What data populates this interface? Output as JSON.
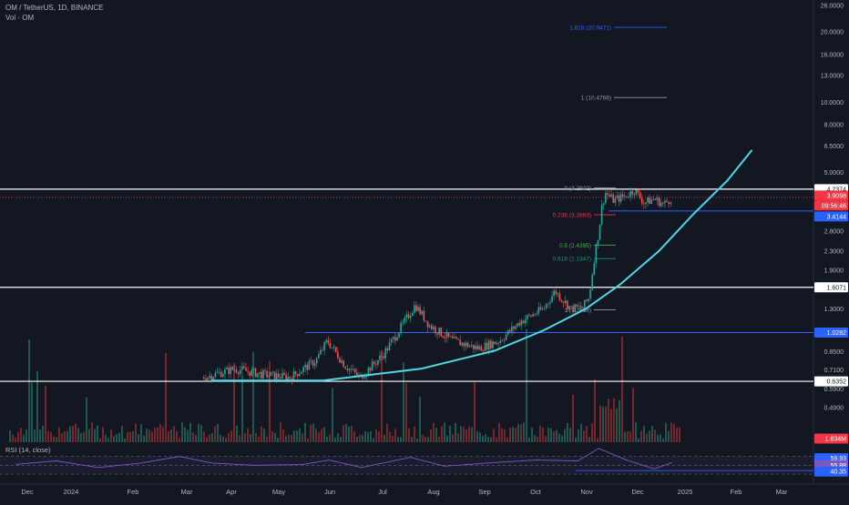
{
  "header": {
    "symbol_line": "OM / TetherUS, 1D, BINANCE",
    "volume_label": "Vol · OM"
  },
  "rsi_label": "RSI (14, close)",
  "colors": {
    "background": "#131722",
    "up": "#26a69a",
    "down": "#ef5350",
    "curve": "#4dd9e6",
    "blue_line": "#2962ff",
    "rsi": "#7e57c2",
    "red_dotted": "#f23645"
  },
  "price_axis": [
    "26.0000",
    "20.0000",
    "16.0000",
    "13.0000",
    "10.0000",
    "8.0000",
    "6.5000",
    "5.0000",
    "4.2374",
    "3.9098",
    "3.4144",
    "2.8000",
    "2.3000",
    "1.9000",
    "1.6071",
    "1.3000",
    "1.0282",
    "0.8500",
    "0.7100",
    "0.6352",
    "0.5900",
    "0.4900",
    "1.834M"
  ],
  "time_axis": [
    "Dec",
    "2024",
    "Feb",
    "Mar",
    "Apr",
    "May",
    "Jun",
    "Jul",
    "Aug",
    "Sep",
    "Oct",
    "Nov",
    "Dec",
    "2025",
    "Feb",
    "Mar"
  ],
  "price_badges": {
    "resistance": "4.2374",
    "last": "3.9098",
    "countdown": "09:56:46",
    "blue_level": "3.4144",
    "level_mid": "1.6071",
    "level_low_blue": "1.0282",
    "support": "0.6352",
    "volume": "1.834M"
  },
  "fib_labels": {
    "f1618": "1.618 (20.9471)",
    "f1": "1 (10.4766)",
    "f0": "0 (4.2942)",
    "f0236": "0.236 (3.2883)",
    "f05": "0.5 (2.4395)",
    "f0618": "0.618 (2.1347)",
    "f1b": "1 (1.2858)"
  },
  "rsi_badges": [
    "59.93",
    "55.88",
    "40.35"
  ],
  "chart_data": {
    "type": "candlestick",
    "symbol": "OM / TetherUS",
    "timeframe": "1D",
    "exchange": "BINANCE",
    "y_scale": "log",
    "y_range": [
      0.46,
      26.0
    ],
    "x_range": [
      "2023-11-20",
      "2025-03-15"
    ],
    "last_price": 3.9098,
    "horizontal_levels": [
      4.2374,
      3.4144,
      1.6071,
      1.0282,
      0.6352
    ],
    "fibonacci": [
      {
        "ratio": 1.618,
        "price": 20.9471
      },
      {
        "ratio": 1,
        "price": 10.4766
      },
      {
        "ratio": 0,
        "price": 4.2942
      },
      {
        "ratio": 0.236,
        "price": 3.2883
      },
      {
        "ratio": 0.5,
        "price": 2.4395
      },
      {
        "ratio": 0.618,
        "price": 2.1347
      },
      {
        "ratio": 1,
        "price": 1.2858
      }
    ],
    "close_path": [
      {
        "x": "2024-03-20",
        "y": 0.66
      },
      {
        "x": "2024-04-08",
        "y": 0.72
      },
      {
        "x": "2024-04-25",
        "y": 0.68
      },
      {
        "x": "2024-05-12",
        "y": 0.66
      },
      {
        "x": "2024-05-28",
        "y": 0.78
      },
      {
        "x": "2024-06-04",
        "y": 0.95
      },
      {
        "x": "2024-06-15",
        "y": 0.74
      },
      {
        "x": "2024-06-24",
        "y": 0.66
      },
      {
        "x": "2024-07-08",
        "y": 0.82
      },
      {
        "x": "2024-07-18",
        "y": 1.05
      },
      {
        "x": "2024-07-28",
        "y": 1.35
      },
      {
        "x": "2024-08-06",
        "y": 1.1
      },
      {
        "x": "2024-08-20",
        "y": 0.95
      },
      {
        "x": "2024-09-05",
        "y": 0.88
      },
      {
        "x": "2024-09-18",
        "y": 0.95
      },
      {
        "x": "2024-10-01",
        "y": 1.15
      },
      {
        "x": "2024-10-15",
        "y": 1.3
      },
      {
        "x": "2024-10-22",
        "y": 1.55
      },
      {
        "x": "2024-11-01",
        "y": 1.3
      },
      {
        "x": "2024-11-08",
        "y": 1.32
      },
      {
        "x": "2024-11-12",
        "y": 1.45
      },
      {
        "x": "2024-11-15",
        "y": 2.1
      },
      {
        "x": "2024-11-18",
        "y": 2.8
      },
      {
        "x": "2024-11-20",
        "y": 3.6
      },
      {
        "x": "2024-11-22",
        "y": 4.1
      },
      {
        "x": "2024-11-27",
        "y": 3.8
      },
      {
        "x": "2024-12-04",
        "y": 3.95
      },
      {
        "x": "2024-12-10",
        "y": 4.2
      },
      {
        "x": "2024-12-16",
        "y": 3.7
      },
      {
        "x": "2024-12-22",
        "y": 3.85
      },
      {
        "x": "2024-12-28",
        "y": 3.65
      },
      {
        "x": "2025-01-02",
        "y": 3.91
      }
    ],
    "trend_curve": [
      {
        "x": "2024-03-25",
        "y": 0.64
      },
      {
        "x": "2024-06-01",
        "y": 0.64
      },
      {
        "x": "2024-08-01",
        "y": 0.72
      },
      {
        "x": "2024-09-15",
        "y": 0.86
      },
      {
        "x": "2024-10-15",
        "y": 1.05
      },
      {
        "x": "2024-11-10",
        "y": 1.3
      },
      {
        "x": "2024-12-01",
        "y": 1.65
      },
      {
        "x": "2024-12-25",
        "y": 2.3
      },
      {
        "x": "2025-01-15",
        "y": 3.3
      },
      {
        "x": "2025-02-05",
        "y": 4.6
      },
      {
        "x": "2025-02-20",
        "y": 6.2
      }
    ],
    "rsi": {
      "period": 14,
      "bands": [
        70,
        50,
        30
      ],
      "values": [
        {
          "x": "2023-11-25",
          "y": 52
        },
        {
          "x": "2023-12-20",
          "y": 60
        },
        {
          "x": "2024-01-15",
          "y": 45
        },
        {
          "x": "2024-02-10",
          "y": 55
        },
        {
          "x": "2024-03-05",
          "y": 70
        },
        {
          "x": "2024-03-25",
          "y": 55
        },
        {
          "x": "2024-04-20",
          "y": 50
        },
        {
          "x": "2024-05-20",
          "y": 52
        },
        {
          "x": "2024-06-05",
          "y": 62
        },
        {
          "x": "2024-06-25",
          "y": 45
        },
        {
          "x": "2024-07-25",
          "y": 68
        },
        {
          "x": "2024-08-15",
          "y": 48
        },
        {
          "x": "2024-09-10",
          "y": 55
        },
        {
          "x": "2024-10-10",
          "y": 62
        },
        {
          "x": "2024-11-05",
          "y": 60
        },
        {
          "x": "2024-11-18",
          "y": 88
        },
        {
          "x": "2024-12-05",
          "y": 62
        },
        {
          "x": "2024-12-22",
          "y": 42
        },
        {
          "x": "2025-01-02",
          "y": 56
        }
      ]
    }
  }
}
